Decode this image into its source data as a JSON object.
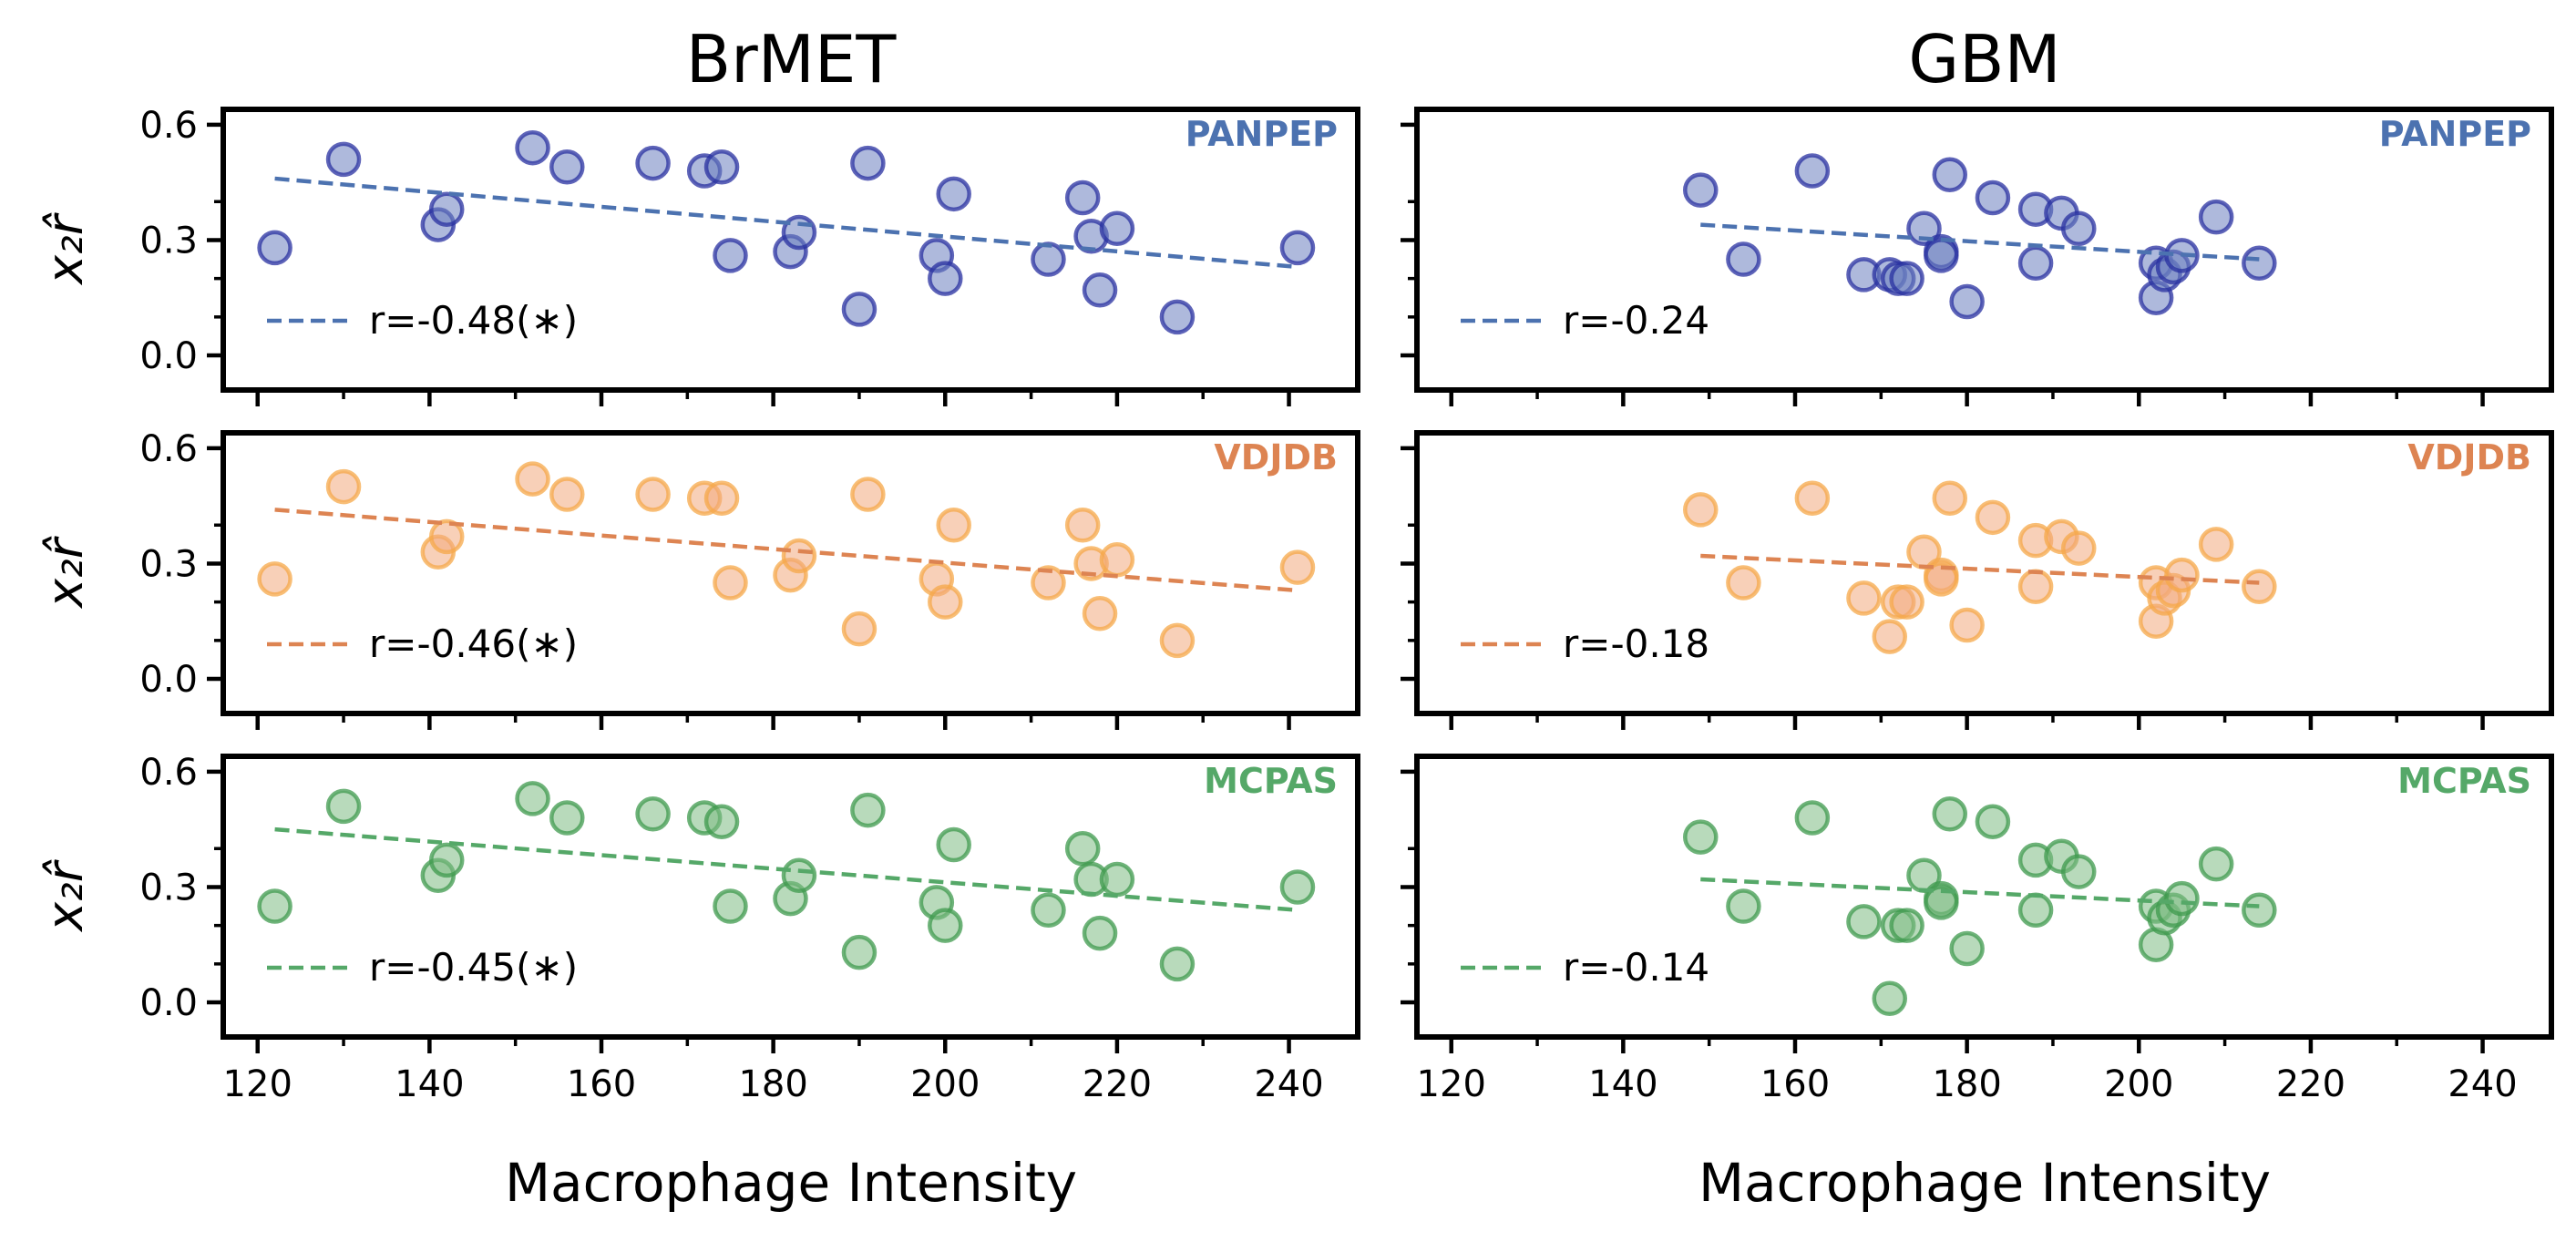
{
  "figure": {
    "columns": [
      "BrMET",
      "GBM"
    ],
    "xlabel": "Macrophage Intensity",
    "ylabel": "x₂r̂"
  },
  "chart_data": [
    {
      "type": "scatter",
      "column": "BrMET",
      "row_label": "PANPEP",
      "label_color": "#4C72B0",
      "line_color": "#4C72B0",
      "marker_face": "#6C7FC0",
      "marker_edge": "#2830A0",
      "legend": "r=-0.48(∗)",
      "xlim": [
        116,
        248
      ],
      "ylim": [
        -0.09,
        0.64
      ],
      "xticks": [
        120,
        140,
        160,
        180,
        200,
        220,
        240
      ],
      "yticks": [
        0.0,
        0.3,
        0.6
      ],
      "x": [
        122,
        130,
        141,
        142,
        152,
        156,
        166,
        172,
        174,
        175,
        182,
        183,
        190,
        191,
        199,
        200,
        201,
        212,
        216,
        217,
        218,
        220,
        227,
        241
      ],
      "y": [
        0.28,
        0.51,
        0.34,
        0.38,
        0.54,
        0.49,
        0.5,
        0.48,
        0.49,
        0.26,
        0.27,
        0.32,
        0.12,
        0.5,
        0.26,
        0.2,
        0.42,
        0.25,
        0.41,
        0.31,
        0.17,
        0.33,
        0.1,
        0.28
      ],
      "fit": {
        "x": [
          122,
          241
        ],
        "y": [
          0.46,
          0.23
        ]
      }
    },
    {
      "type": "scatter",
      "column": "GBM",
      "row_label": "PANPEP",
      "label_color": "#4C72B0",
      "line_color": "#4C72B0",
      "marker_face": "#6C7FC0",
      "marker_edge": "#2830A0",
      "legend": "r=-0.24",
      "xlim": [
        116,
        248
      ],
      "ylim": [
        -0.09,
        0.64
      ],
      "xticks": [
        120,
        140,
        160,
        180,
        200,
        220,
        240
      ],
      "yticks": [
        0.0,
        0.3,
        0.6
      ],
      "x": [
        149,
        154,
        162,
        168,
        171,
        172,
        173,
        175,
        177,
        177,
        178,
        180,
        183,
        188,
        188,
        191,
        193,
        202,
        202,
        203,
        204,
        205,
        209,
        214
      ],
      "y": [
        0.43,
        0.25,
        0.48,
        0.21,
        0.21,
        0.2,
        0.2,
        0.33,
        0.27,
        0.26,
        0.47,
        0.14,
        0.41,
        0.24,
        0.38,
        0.37,
        0.33,
        0.24,
        0.15,
        0.21,
        0.23,
        0.26,
        0.36,
        0.24
      ],
      "fit": {
        "x": [
          149,
          214
        ],
        "y": [
          0.34,
          0.25
        ]
      }
    },
    {
      "type": "scatter",
      "column": "BrMET",
      "row_label": "VDJDB",
      "label_color": "#DD8452",
      "line_color": "#DD8452",
      "marker_face": "#F3A97E",
      "marker_edge": "#F5A849",
      "legend": "r=-0.46(∗)",
      "xlim": [
        116,
        248
      ],
      "ylim": [
        -0.09,
        0.64
      ],
      "xticks": [
        120,
        140,
        160,
        180,
        200,
        220,
        240
      ],
      "yticks": [
        0.0,
        0.3,
        0.6
      ],
      "x": [
        122,
        130,
        141,
        142,
        152,
        156,
        166,
        172,
        174,
        175,
        182,
        183,
        190,
        191,
        199,
        200,
        201,
        212,
        216,
        217,
        218,
        220,
        227,
        241
      ],
      "y": [
        0.26,
        0.5,
        0.33,
        0.37,
        0.52,
        0.48,
        0.48,
        0.47,
        0.47,
        0.25,
        0.27,
        0.32,
        0.13,
        0.48,
        0.26,
        0.2,
        0.4,
        0.25,
        0.4,
        0.3,
        0.17,
        0.31,
        0.1,
        0.29
      ],
      "fit": {
        "x": [
          122,
          241
        ],
        "y": [
          0.44,
          0.23
        ]
      }
    },
    {
      "type": "scatter",
      "column": "GBM",
      "row_label": "VDJDB",
      "label_color": "#DD8452",
      "line_color": "#DD8452",
      "marker_face": "#F3A97E",
      "marker_edge": "#F5A849",
      "legend": "r=-0.18",
      "xlim": [
        116,
        248
      ],
      "ylim": [
        -0.09,
        0.64
      ],
      "xticks": [
        120,
        140,
        160,
        180,
        200,
        220,
        240
      ],
      "yticks": [
        0.0,
        0.3,
        0.6
      ],
      "x": [
        149,
        154,
        162,
        168,
        171,
        172,
        173,
        175,
        177,
        177,
        178,
        180,
        183,
        188,
        188,
        191,
        193,
        202,
        202,
        203,
        204,
        205,
        209,
        214
      ],
      "y": [
        0.44,
        0.25,
        0.47,
        0.21,
        0.11,
        0.2,
        0.2,
        0.33,
        0.27,
        0.26,
        0.47,
        0.14,
        0.42,
        0.24,
        0.36,
        0.37,
        0.34,
        0.25,
        0.15,
        0.21,
        0.23,
        0.27,
        0.35,
        0.24
      ],
      "fit": {
        "x": [
          149,
          214
        ],
        "y": [
          0.32,
          0.25
        ]
      }
    },
    {
      "type": "scatter",
      "column": "BrMET",
      "row_label": "MCPAS",
      "label_color": "#55A868",
      "line_color": "#55A868",
      "marker_face": "#7DBB84",
      "marker_edge": "#3F9A4E",
      "legend": "r=-0.45(∗)",
      "xlim": [
        116,
        248
      ],
      "ylim": [
        -0.09,
        0.64
      ],
      "xticks": [
        120,
        140,
        160,
        180,
        200,
        220,
        240
      ],
      "yticks": [
        0.0,
        0.3,
        0.6
      ],
      "x": [
        122,
        130,
        141,
        142,
        152,
        156,
        166,
        172,
        174,
        175,
        182,
        183,
        190,
        191,
        199,
        200,
        201,
        212,
        216,
        217,
        218,
        220,
        227,
        241
      ],
      "y": [
        0.25,
        0.51,
        0.33,
        0.37,
        0.53,
        0.48,
        0.49,
        0.48,
        0.47,
        0.25,
        0.27,
        0.33,
        0.13,
        0.5,
        0.26,
        0.2,
        0.41,
        0.24,
        0.4,
        0.32,
        0.18,
        0.32,
        0.1,
        0.3
      ],
      "fit": {
        "x": [
          122,
          241
        ],
        "y": [
          0.45,
          0.24
        ]
      }
    },
    {
      "type": "scatter",
      "column": "GBM",
      "row_label": "MCPAS",
      "label_color": "#55A868",
      "line_color": "#55A868",
      "marker_face": "#7DBB84",
      "marker_edge": "#3F9A4E",
      "legend": "r=-0.14",
      "xlim": [
        116,
        248
      ],
      "ylim": [
        -0.09,
        0.64
      ],
      "xticks": [
        120,
        140,
        160,
        180,
        200,
        220,
        240
      ],
      "yticks": [
        0.0,
        0.3,
        0.6
      ],
      "x": [
        149,
        154,
        162,
        168,
        171,
        172,
        173,
        175,
        177,
        177,
        178,
        180,
        183,
        188,
        188,
        191,
        193,
        202,
        202,
        203,
        204,
        205,
        209,
        214
      ],
      "y": [
        0.43,
        0.25,
        0.48,
        0.21,
        0.01,
        0.2,
        0.2,
        0.33,
        0.27,
        0.26,
        0.49,
        0.14,
        0.47,
        0.24,
        0.37,
        0.38,
        0.34,
        0.25,
        0.15,
        0.22,
        0.24,
        0.27,
        0.36,
        0.24
      ],
      "fit": {
        "x": [
          149,
          214
        ],
        "y": [
          0.32,
          0.25
        ]
      }
    }
  ]
}
